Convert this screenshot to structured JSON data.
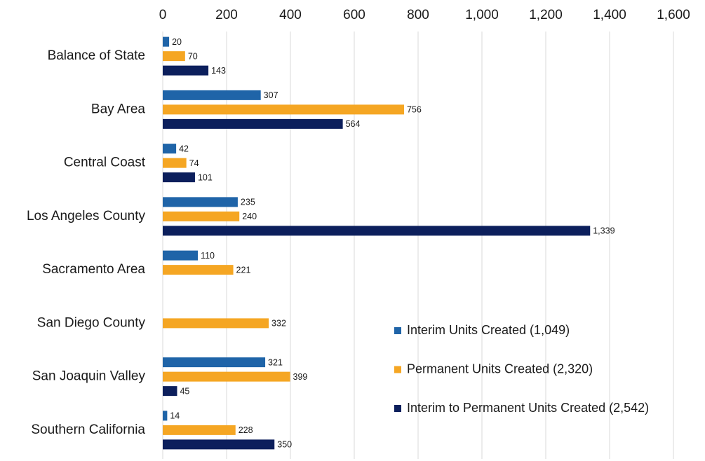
{
  "chart_data": {
    "type": "bar",
    "orientation": "horizontal",
    "categories": [
      "Balance of State",
      "Bay Area",
      "Central Coast",
      "Los Angeles County",
      "Sacramento Area",
      "San Diego County",
      "San Joaquin Valley",
      "Southern California"
    ],
    "series": [
      {
        "name": "Interim Units Created (1,049)",
        "color": "#1f64a8",
        "values": [
          20,
          307,
          42,
          235,
          110,
          null,
          321,
          14
        ]
      },
      {
        "name": "Permanent Units Created (2,320)",
        "color": "#f5a623",
        "values": [
          70,
          756,
          74,
          240,
          221,
          332,
          399,
          228
        ]
      },
      {
        "name": "Interim to Permanent Units Created (2,542)",
        "color": "#0c1f5c",
        "values": [
          143,
          564,
          101,
          1339,
          null,
          null,
          45,
          350
        ],
        "value_labels": [
          "143",
          "564",
          "101",
          "1,339",
          null,
          null,
          "45",
          "350"
        ]
      }
    ],
    "xlim": [
      0,
      1600
    ],
    "xticks": [
      0,
      200,
      400,
      600,
      800,
      {
        "value": 1000,
        "label": "1,000"
      },
      {
        "value": 1200,
        "label": "1,200"
      },
      {
        "value": 1400,
        "label": "1,400"
      },
      {
        "value": 1600,
        "label": "1,600"
      }
    ],
    "grid": true,
    "legend": "lower right"
  }
}
